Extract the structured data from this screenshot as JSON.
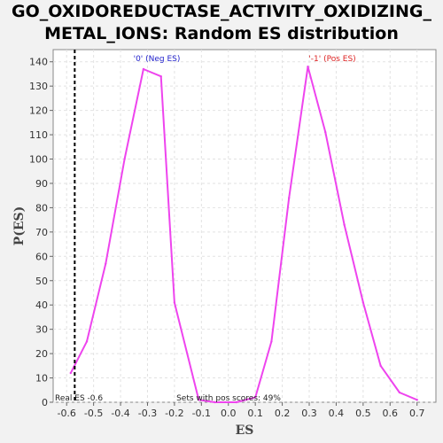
{
  "title_line1": "GO_OXIDOREDUCTASE_ACTIVITY_OXIDIZING_",
  "title_line2": "METAL_IONS: Random ES distribution",
  "chart_data": {
    "type": "line",
    "xlabel": "ES",
    "ylabel": "P(ES)",
    "xlim": [
      -0.65,
      0.77
    ],
    "ylim": [
      0,
      145
    ],
    "x_ticks": [
      -0.6,
      -0.5,
      -0.4,
      -0.3,
      -0.2,
      -0.1,
      0.0,
      0.1,
      0.2,
      0.3,
      0.4,
      0.5,
      0.6,
      0.7
    ],
    "x_tick_labels": [
      "-0.6",
      "-0.5",
      "-0.4",
      "-0.3",
      "-0.2",
      "-0.1",
      "0.0",
      "0.1",
      "0.2",
      "0.3",
      "0.4",
      "0.5",
      "0.6",
      "0.7"
    ],
    "y_ticks": [
      0,
      10,
      20,
      30,
      40,
      50,
      60,
      70,
      80,
      90,
      100,
      110,
      120,
      130,
      140
    ],
    "y_tick_labels": [
      "0",
      "10",
      "20",
      "30",
      "40",
      "50",
      "60",
      "70",
      "80",
      "90",
      "100",
      "110",
      "120",
      "130",
      "140"
    ],
    "grid": true,
    "series": [
      {
        "color": "#ee44ee",
        "x": [
          -0.585,
          -0.525,
          -0.455,
          -0.385,
          -0.315,
          -0.25,
          -0.2,
          -0.11,
          -0.05,
          0.03,
          0.1,
          0.16,
          0.225,
          0.295,
          0.36,
          0.43,
          0.5,
          0.565,
          0.635,
          0.7
        ],
        "y": [
          12,
          25,
          57,
          100,
          137,
          134,
          41,
          1,
          0,
          0,
          2,
          25,
          84,
          138,
          111,
          73,
          41,
          15,
          4,
          1
        ]
      }
    ],
    "real_es": -0.57,
    "annotations": {
      "neg_label": "'0' (Neg ES)",
      "pos_label": "'-1' (Pos ES)",
      "neg_color": "#2222cc",
      "pos_color": "#dd2222",
      "real_es_text": "Real ES -0.6",
      "pos_scores_text": "Sets with pos scores: 49%"
    }
  }
}
